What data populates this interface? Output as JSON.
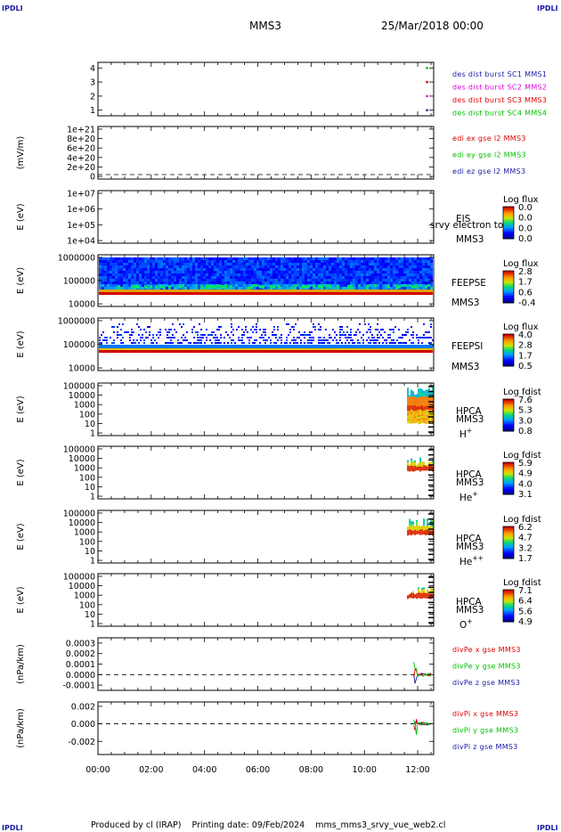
{
  "header": {
    "corner_label": "IPDLI",
    "spacecraft": "MMS3",
    "date": "25/Mar/2018 00:00"
  },
  "footer": {
    "text": "Produced by cl (IRAP)    Printing date: 09/Feb/2024    mms_mms3_srvy_vue_web2.cl"
  },
  "colors": {
    "red": "#dd0000",
    "magenta": "#dd00dd",
    "green": "#00c000",
    "blue": "#0000cc",
    "dark_blue": "#1a1aa6"
  },
  "x_axis": {
    "ticks": [
      "00:00",
      "02:00",
      "04:00",
      "06:00",
      "08:00",
      "10:00",
      "12:00"
    ],
    "range_hours": [
      0,
      12.6
    ]
  },
  "chart_data": [
    {
      "type": "scatter",
      "name": "burst",
      "yticks": [
        "1",
        "2",
        "3",
        "4"
      ],
      "ylim": [
        0.6,
        4.4
      ],
      "legend": [
        {
          "text": "des dist burst SC1 MMS1",
          "color": "#1a1aa6"
        },
        {
          "text": "des dist burst SC2 MMS2",
          "color": "#dd00dd"
        },
        {
          "text": "des dist burst SC3 MMS3",
          "color": "#dd0000"
        },
        {
          "text": "des dist burst SC4 MMS4",
          "color": "#00c000"
        }
      ],
      "series": [
        {
          "color": "#1a1aa6",
          "x": [
            12.35
          ],
          "y": [
            1
          ]
        },
        {
          "color": "#dd00dd",
          "x": [
            12.35
          ],
          "y": [
            2
          ]
        },
        {
          "color": "#dd0000",
          "x": [
            12.35
          ],
          "y": [
            3
          ]
        },
        {
          "color": "#00c000",
          "x": [
            12.35
          ],
          "y": [
            4
          ]
        }
      ]
    },
    {
      "type": "line",
      "name": "edi",
      "ylabel": "(mV/m)",
      "yticks": [
        "0",
        "2e+20",
        "4e+20",
        "6e+20",
        "8e+20",
        "1e+21"
      ],
      "ylim": [
        0,
        1e+21
      ],
      "legend": [
        {
          "text": "edi ex gse l2 MMS3",
          "color": "#dd0000"
        },
        {
          "text": "edi ey gse l2 MMS3",
          "color": "#00c000"
        },
        {
          "text": "edi ez gse l2 MMS3",
          "color": "#1a1aa6"
        }
      ],
      "zero_line": true
    },
    {
      "type": "heatmap",
      "name": "eis",
      "ylabel": "E (eV)",
      "yticks": [
        "1e+04",
        "1e+05",
        "1e+06",
        "1e+07"
      ],
      "side_labels": [
        "EIS",
        "MMS3"
      ],
      "overlay_label": "srvy electron tof",
      "colorbar": {
        "title": "Log flux",
        "ticks": [
          "0.0",
          "0.0",
          "0.0",
          "0.0"
        ]
      }
    },
    {
      "type": "heatmap",
      "name": "feepse",
      "ylabel": "E (eV)",
      "yticks": [
        "1000000",
        "100000",
        "10000"
      ],
      "side_labels": [
        "FEEPSE",
        "MMS3"
      ],
      "colorbar": {
        "title": "Log flux",
        "ticks": [
          "2.8",
          "1.7",
          "0.6",
          "-0.4"
        ]
      }
    },
    {
      "type": "heatmap",
      "name": "feepsi",
      "ylabel": "E (eV)",
      "yticks": [
        "1000000",
        "100000",
        "10000"
      ],
      "side_labels": [
        "FEEPSI",
        "MMS3"
      ],
      "colorbar": {
        "title": "Log flux",
        "ticks": [
          "4.0",
          "2.8",
          "1.7",
          "0.5"
        ]
      }
    },
    {
      "type": "heatmap",
      "name": "hpca_h",
      "ylabel": "E (eV)",
      "yticks": [
        "100000",
        "10000",
        "1000",
        "100",
        "10",
        "1"
      ],
      "side_labels": [
        "HPCA",
        "MMS3"
      ],
      "species": "H",
      "species_sup": "+",
      "colorbar": {
        "title": "Log fdist",
        "ticks": [
          "7.6",
          "5.3",
          "3.0",
          "0.8"
        ]
      }
    },
    {
      "type": "heatmap",
      "name": "hpca_he",
      "ylabel": "E (eV)",
      "yticks": [
        "100000",
        "10000",
        "1000",
        "100",
        "10",
        "1"
      ],
      "side_labels": [
        "HPCA",
        "MMS3"
      ],
      "species": "He",
      "species_sup": "+",
      "colorbar": {
        "title": "Log fdist",
        "ticks": [
          "5.9",
          "4.9",
          "4.0",
          "3.1"
        ]
      }
    },
    {
      "type": "heatmap",
      "name": "hpca_he2",
      "ylabel": "E (eV)",
      "yticks": [
        "100000",
        "10000",
        "1000",
        "100",
        "10",
        "1"
      ],
      "side_labels": [
        "HPCA",
        "MMS3"
      ],
      "species": "He",
      "species_sup": "++",
      "colorbar": {
        "title": "Log fdist",
        "ticks": [
          "6.2",
          "4.7",
          "3.2",
          "1.7"
        ]
      }
    },
    {
      "type": "heatmap",
      "name": "hpca_o",
      "ylabel": "E (eV)",
      "yticks": [
        "100000",
        "10000",
        "1000",
        "100",
        "10",
        "1"
      ],
      "side_labels": [
        "HPCA",
        "MMS3"
      ],
      "species": "O",
      "species_sup": "+",
      "colorbar": {
        "title": "Log fdist",
        "ticks": [
          "7.1",
          "6.4",
          "5.6",
          "4.9"
        ]
      }
    },
    {
      "type": "line",
      "name": "divpe",
      "ylabel": "(nPa/km)",
      "yticks": [
        "0.0003",
        "0.0002",
        "0.0001",
        "0.0000",
        "-0.0001"
      ],
      "ylim": [
        -0.00015,
        0.00035
      ],
      "legend": [
        {
          "text": "divPe x gse MMS3",
          "color": "#dd0000"
        },
        {
          "text": "divPe y gse MMS3",
          "color": "#00c000"
        },
        {
          "text": "divPe z gse MMS3",
          "color": "#1a1aa6"
        }
      ],
      "zero_line": true
    },
    {
      "type": "line",
      "name": "divpi",
      "ylabel": "(nPa/km)",
      "yticks": [
        "0.002",
        "0.000",
        "-0.002"
      ],
      "ylim": [
        -0.0035,
        0.0025
      ],
      "legend": [
        {
          "text": "divPi x gse MMS3",
          "color": "#dd0000"
        },
        {
          "text": "divPi y gse MMS3",
          "color": "#00c000"
        },
        {
          "text": "divPi z gse MMS3",
          "color": "#1a1aa6"
        }
      ],
      "zero_line": true
    }
  ]
}
